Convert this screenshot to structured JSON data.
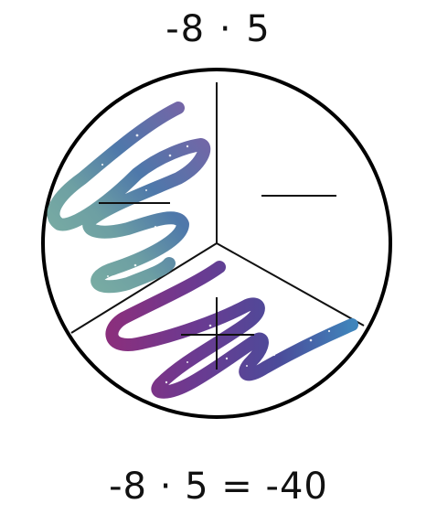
{
  "expression": "-8 · 5",
  "equation": "-8 · 5 = -40",
  "diagram": {
    "sections": 3,
    "scribbled_sections": 2,
    "section_signs": [
      "-",
      "-",
      "+"
    ],
    "scribble_colors": [
      "#6fa59c",
      "#4a76a8",
      "#6a3f93",
      "#2d6ea5"
    ]
  }
}
